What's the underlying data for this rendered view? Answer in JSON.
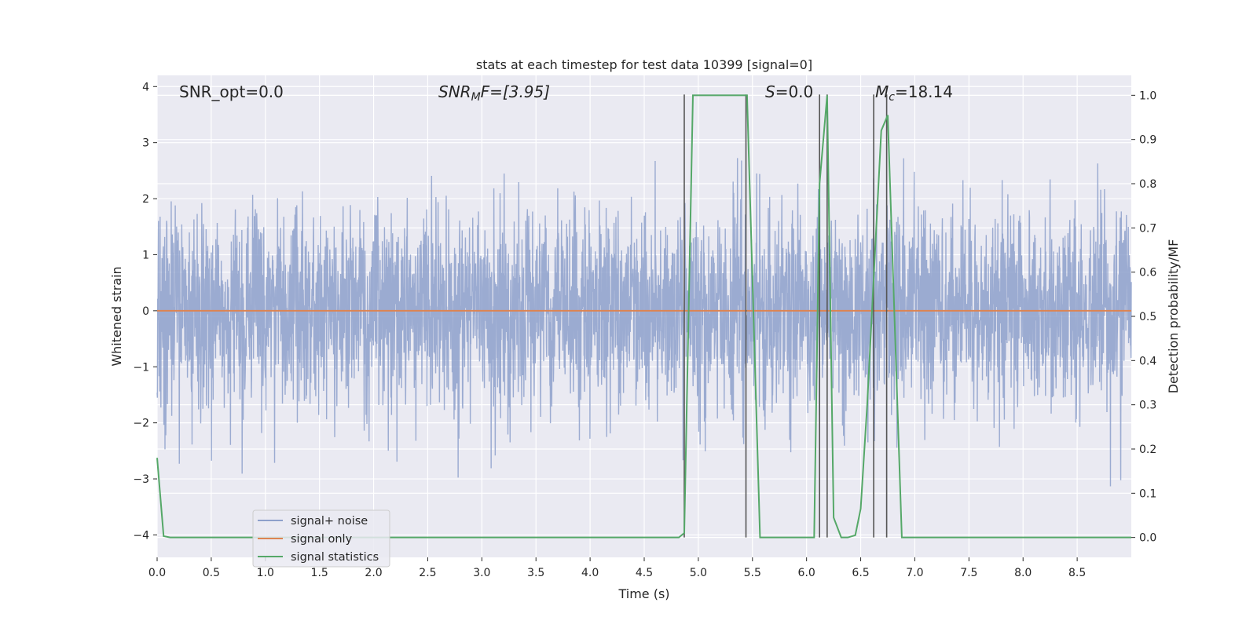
{
  "chart_data": {
    "type": "line",
    "title": "stats at each timestep for test data 10399 [signal=0]",
    "xlabel": "Time (s)",
    "ylabel": "Whitened strain",
    "y2label": "Detection probability/MF",
    "xlim": [
      0,
      9.0
    ],
    "ylim": [
      -4.4,
      4.2
    ],
    "y2lim": [
      -0.045,
      1.045
    ],
    "x_ticks": [
      "0.0",
      "0.5",
      "1.0",
      "1.5",
      "2.0",
      "2.5",
      "3.0",
      "3.5",
      "4.0",
      "4.5",
      "5.0",
      "5.5",
      "6.0",
      "6.5",
      "7.0",
      "7.5",
      "8.0",
      "8.5"
    ],
    "y_ticks": [
      "4",
      "3",
      "2",
      "1",
      "0",
      "−1",
      "−2",
      "−3",
      "−4"
    ],
    "y2_ticks": [
      "1.0",
      "0.9",
      "0.8",
      "0.7",
      "0.6",
      "0.5",
      "0.4",
      "0.3",
      "0.2",
      "0.1",
      "0.0"
    ],
    "grid": true,
    "legend_position": "lower-left",
    "annotations": {
      "snr_opt": "SNR_opt=0.0",
      "snr_mf_prefix": "SNR",
      "snr_mf_sub": "M",
      "snr_mf_suffix": "F=[3.95]",
      "s_stat_var": "S",
      "s_stat_value": "=0.0",
      "mc_var": "M",
      "mc_sub": "c",
      "mc_value": "=18.14"
    },
    "series": [
      {
        "name": "signal+ noise",
        "color": "#8da0cb",
        "axis": "left",
        "kind": "noise",
        "sigma": 0.9,
        "note_range": [
          -3.7,
          3.6
        ]
      },
      {
        "name": "signal only",
        "color": "#dd8452",
        "axis": "left",
        "x": [
          0,
          9.0
        ],
        "y": [
          0,
          0
        ]
      },
      {
        "name": "signal statistics",
        "color": "#55a868",
        "axis": "right",
        "x": [
          0.0,
          0.06,
          0.12,
          4.82,
          4.87,
          4.95,
          5.45,
          5.57,
          6.07,
          6.12,
          6.19,
          6.25,
          6.32,
          6.38,
          6.45,
          6.5,
          6.56,
          6.69,
          6.75,
          6.88,
          9.0
        ],
        "y": [
          0.18,
          0.003,
          0.0,
          0.0,
          0.01,
          1.0,
          1.0,
          0.0,
          0.0,
          0.8,
          1.0,
          0.045,
          0.0,
          0.0,
          0.005,
          0.065,
          0.3,
          0.92,
          0.955,
          0.0,
          0.0
        ]
      }
    ],
    "vlines_x": [
      4.87,
      5.44,
      6.12,
      6.19,
      6.62,
      6.74
    ],
    "vline_color": "#555555"
  }
}
